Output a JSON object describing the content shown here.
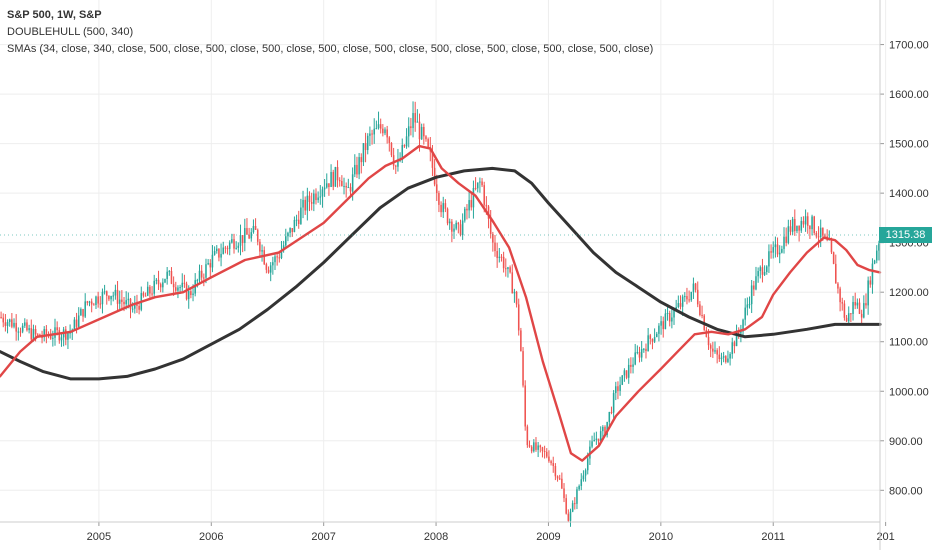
{
  "chart_data": {
    "type": "candlestick",
    "title": "S&P 500, 1W, S&P",
    "legend": [
      "DOUBLEHULL (500, 340)",
      "SMAs (34, close, 340, close, 500, close, 500, close, 500, close, 500, close, 500, close, 500, close, 500, close, 500, close, 500, close)"
    ],
    "y_ticks": [
      "1700.00",
      "1600.00",
      "1500.00",
      "1400.00",
      "1300.00",
      "1200.00",
      "1100.00",
      "1000.00",
      "900.00",
      "800.00"
    ],
    "x_ticks": [
      "2005",
      "2006",
      "2007",
      "2008",
      "2009",
      "2010",
      "2011",
      "201"
    ],
    "ylim": [
      736,
      1790
    ],
    "xlim": [
      2004.12,
      2011.95
    ],
    "grid": true,
    "last_price": "1315.38",
    "colors": {
      "up": "#26a69a",
      "down": "#ef5350",
      "sma_short": "#e04646",
      "sma_long": "#333333",
      "price_tag": "#26a69a",
      "grid": "#eeeeee",
      "text": "#333333"
    },
    "price_path": [
      [
        2004.12,
        1150
      ],
      [
        2004.3,
        1130
      ],
      [
        2004.45,
        1110
      ],
      [
        2004.6,
        1115
      ],
      [
        2004.75,
        1120
      ],
      [
        2004.9,
        1180
      ],
      [
        2005.1,
        1200
      ],
      [
        2005.3,
        1165
      ],
      [
        2005.45,
        1200
      ],
      [
        2005.6,
        1235
      ],
      [
        2005.8,
        1195
      ],
      [
        2006.0,
        1265
      ],
      [
        2006.2,
        1305
      ],
      [
        2006.4,
        1320
      ],
      [
        2006.5,
        1250
      ],
      [
        2006.6,
        1275
      ],
      [
        2006.8,
        1365
      ],
      [
        2007.0,
        1420
      ],
      [
        2007.15,
        1440
      ],
      [
        2007.2,
        1395
      ],
      [
        2007.4,
        1510
      ],
      [
        2007.55,
        1540
      ],
      [
        2007.65,
        1445
      ],
      [
        2007.8,
        1555
      ],
      [
        2007.95,
        1470
      ],
      [
        2008.05,
        1370
      ],
      [
        2008.2,
        1320
      ],
      [
        2008.3,
        1380
      ],
      [
        2008.4,
        1425
      ],
      [
        2008.5,
        1300
      ],
      [
        2008.6,
        1260
      ],
      [
        2008.7,
        1200
      ],
      [
        2008.75,
        1100
      ],
      [
        2008.8,
        900
      ],
      [
        2008.9,
        880
      ],
      [
        2009.0,
        870
      ],
      [
        2009.1,
        820
      ],
      [
        2009.18,
        740
      ],
      [
        2009.3,
        830
      ],
      [
        2009.4,
        900
      ],
      [
        2009.5,
        920
      ],
      [
        2009.6,
        1000
      ],
      [
        2009.75,
        1060
      ],
      [
        2009.9,
        1105
      ],
      [
        2010.05,
        1145
      ],
      [
        2010.2,
        1180
      ],
      [
        2010.3,
        1210
      ],
      [
        2010.45,
        1080
      ],
      [
        2010.55,
        1060
      ],
      [
        2010.7,
        1120
      ],
      [
        2010.8,
        1200
      ],
      [
        2010.9,
        1250
      ],
      [
        2011.05,
        1290
      ],
      [
        2011.15,
        1330
      ],
      [
        2011.3,
        1350
      ],
      [
        2011.4,
        1320
      ],
      [
        2011.5,
        1290
      ],
      [
        2011.58,
        1200
      ],
      [
        2011.65,
        1140
      ],
      [
        2011.72,
        1180
      ],
      [
        2011.8,
        1160
      ],
      [
        2011.88,
        1250
      ],
      [
        2011.95,
        1315
      ]
    ],
    "sma_short": [
      [
        2004.12,
        1030
      ],
      [
        2004.3,
        1080
      ],
      [
        2004.45,
        1110
      ],
      [
        2004.6,
        1115
      ],
      [
        2004.75,
        1120
      ],
      [
        2005.0,
        1145
      ],
      [
        2005.3,
        1175
      ],
      [
        2005.5,
        1190
      ],
      [
        2005.75,
        1200
      ],
      [
        2006.0,
        1230
      ],
      [
        2006.3,
        1265
      ],
      [
        2006.6,
        1280
      ],
      [
        2006.8,
        1310
      ],
      [
        2007.0,
        1340
      ],
      [
        2007.2,
        1385
      ],
      [
        2007.4,
        1430
      ],
      [
        2007.55,
        1455
      ],
      [
        2007.7,
        1470
      ],
      [
        2007.85,
        1495
      ],
      [
        2007.95,
        1490
      ],
      [
        2008.05,
        1450
      ],
      [
        2008.2,
        1420
      ],
      [
        2008.35,
        1395
      ],
      [
        2008.5,
        1345
      ],
      [
        2008.65,
        1290
      ],
      [
        2008.8,
        1190
      ],
      [
        2008.95,
        1060
      ],
      [
        2009.1,
        950
      ],
      [
        2009.2,
        875
      ],
      [
        2009.3,
        860
      ],
      [
        2009.45,
        890
      ],
      [
        2009.6,
        950
      ],
      [
        2009.8,
        1000
      ],
      [
        2010.0,
        1045
      ],
      [
        2010.15,
        1080
      ],
      [
        2010.3,
        1115
      ],
      [
        2010.45,
        1120
      ],
      [
        2010.6,
        1115
      ],
      [
        2010.75,
        1125
      ],
      [
        2010.9,
        1150
      ],
      [
        2011.0,
        1195
      ],
      [
        2011.15,
        1240
      ],
      [
        2011.3,
        1280
      ],
      [
        2011.45,
        1310
      ],
      [
        2011.55,
        1305
      ],
      [
        2011.65,
        1285
      ],
      [
        2011.75,
        1255
      ],
      [
        2011.85,
        1245
      ],
      [
        2011.95,
        1240
      ]
    ],
    "sma_long": [
      [
        2004.12,
        1080
      ],
      [
        2004.3,
        1060
      ],
      [
        2004.5,
        1040
      ],
      [
        2004.75,
        1025
      ],
      [
        2005.0,
        1025
      ],
      [
        2005.25,
        1030
      ],
      [
        2005.5,
        1045
      ],
      [
        2005.75,
        1065
      ],
      [
        2006.0,
        1095
      ],
      [
        2006.25,
        1125
      ],
      [
        2006.5,
        1165
      ],
      [
        2006.75,
        1210
      ],
      [
        2007.0,
        1260
      ],
      [
        2007.25,
        1315
      ],
      [
        2007.5,
        1370
      ],
      [
        2007.75,
        1410
      ],
      [
        2008.0,
        1432
      ],
      [
        2008.25,
        1445
      ],
      [
        2008.5,
        1450
      ],
      [
        2008.7,
        1445
      ],
      [
        2008.85,
        1420
      ],
      [
        2009.0,
        1380
      ],
      [
        2009.2,
        1330
      ],
      [
        2009.4,
        1280
      ],
      [
        2009.6,
        1240
      ],
      [
        2009.8,
        1210
      ],
      [
        2010.0,
        1180
      ],
      [
        2010.25,
        1150
      ],
      [
        2010.5,
        1125
      ],
      [
        2010.75,
        1110
      ],
      [
        2011.0,
        1115
      ],
      [
        2011.3,
        1125
      ],
      [
        2011.55,
        1135
      ],
      [
        2011.75,
        1135
      ],
      [
        2011.95,
        1135
      ]
    ]
  }
}
